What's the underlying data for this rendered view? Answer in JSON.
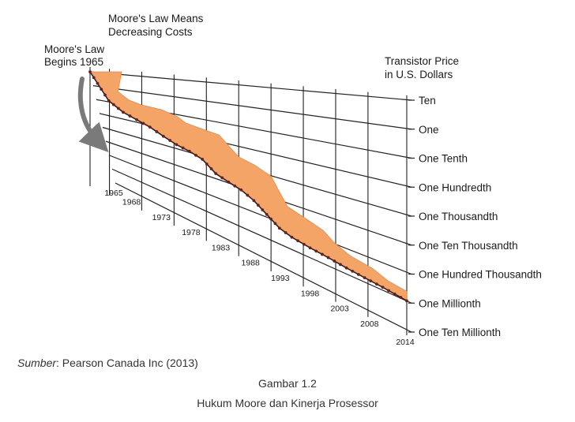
{
  "chart_data": {
    "type": "area",
    "header_left_lines": [
      "Moore's Law Means",
      "Decreasing Costs"
    ],
    "start_note_lines": [
      "Moore's Law",
      "Begins 1965"
    ],
    "ylabel_lines": [
      "Transistor Price",
      "in U.S. Dollars"
    ],
    "y_levels": [
      {
        "label": "Ten",
        "value": 10
      },
      {
        "label": "One",
        "value": 1
      },
      {
        "label": "One Tenth",
        "value": 0.1
      },
      {
        "label": "One Hundredth",
        "value": 0.01
      },
      {
        "label": "One Thousandth",
        "value": 0.001
      },
      {
        "label": "One Ten Thousandth",
        "value": 0.0001
      },
      {
        "label": "One Hundred Thousandth",
        "value": 1e-05
      },
      {
        "label": "One Millionth",
        "value": 1e-06
      },
      {
        "label": "One Ten Millionth",
        "value": 1e-07
      }
    ],
    "x_ticks": [
      "1965",
      "1968",
      "1973",
      "1978",
      "1983",
      "1988",
      "1993",
      "1998",
      "2003",
      "2008",
      "2014"
    ],
    "x_range": [
      1965,
      2014
    ],
    "y_scale": "log",
    "colors": {
      "band": "#f4a466",
      "line": "#222222",
      "dot": "#6b1f1f",
      "arrow": "#7a7a7a"
    },
    "series": [
      {
        "x": [
          1965,
          1967,
          1969,
          1971,
          1973,
          1975,
          1977,
          1979,
          1981,
          1983,
          1985,
          1987,
          1989,
          1991,
          1993,
          1995,
          1998,
          2001,
          2004,
          2007,
          2010,
          2014
        ],
        "values": [
          10,
          0.12,
          0.03,
          0.015,
          0.008,
          0.0035,
          0.0018,
          0.0012,
          0.0007,
          0.0002,
          0.00012,
          8e-05,
          4e-05,
          1.5e-05,
          6e-06,
          4e-06,
          3e-06,
          2.5e-06,
          2e-06,
          1.7e-06,
          1.5e-06,
          1.2e-06
        ]
      }
    ]
  },
  "caption": {
    "source_prefix": "Sumber",
    "source_rest": ": Pearson Canada Inc (2013)",
    "figure_number": "Gambar 1.2",
    "figure_title": "Hukum Moore dan Kinerja Prosessor"
  }
}
